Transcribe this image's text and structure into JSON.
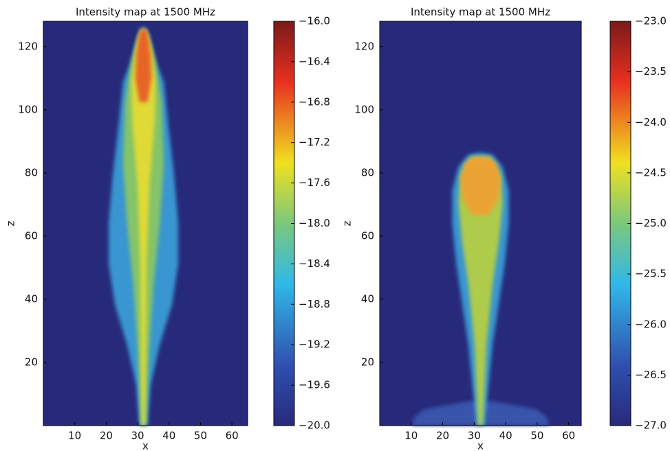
{
  "chart_data": [
    {
      "type": "heatmap",
      "title": "Intensity map at 1500 MHz",
      "xlabel": "x",
      "ylabel": "z",
      "xlim": [
        0,
        65
      ],
      "ylim": [
        0,
        128
      ],
      "xticks": [
        10,
        20,
        30,
        40,
        50,
        60
      ],
      "yticks": [
        20,
        40,
        60,
        80,
        100,
        120
      ],
      "colorbar": {
        "lim": [
          -20.0,
          -16.0
        ],
        "ticks": [
          {
            "value": -16.0,
            "label": "−16.0"
          },
          {
            "value": -16.4,
            "label": "−16.4"
          },
          {
            "value": -16.8,
            "label": "−16.8"
          },
          {
            "value": -17.2,
            "label": "−17.2"
          },
          {
            "value": -17.6,
            "label": "−17.6"
          },
          {
            "value": -18.0,
            "label": "−18.0"
          },
          {
            "value": -18.4,
            "label": "−18.4"
          },
          {
            "value": -18.8,
            "label": "−18.8"
          },
          {
            "value": -19.2,
            "label": "−19.2"
          },
          {
            "value": -19.6,
            "label": "−19.6"
          },
          {
            "value": -20.0,
            "label": "−20.0"
          }
        ]
      }
    },
    {
      "type": "heatmap",
      "title": "Intensity map at 1500 MHz",
      "xlabel": "x",
      "ylabel": "z",
      "xlim": [
        0,
        64
      ],
      "ylim": [
        0,
        128
      ],
      "xticks": [
        10,
        20,
        30,
        40,
        50,
        60
      ],
      "yticks": [
        20,
        40,
        60,
        80,
        100,
        120
      ],
      "colorbar": {
        "lim": [
          -27.0,
          -23.0
        ],
        "ticks": [
          {
            "value": -23.0,
            "label": "−23.0"
          },
          {
            "value": -23.5,
            "label": "−23.5"
          },
          {
            "value": -24.0,
            "label": "−24.0"
          },
          {
            "value": -24.5,
            "label": "−24.5"
          },
          {
            "value": -25.0,
            "label": "−25.0"
          },
          {
            "value": -25.5,
            "label": "−25.5"
          },
          {
            "value": -26.0,
            "label": "−26.0"
          },
          {
            "value": -26.5,
            "label": "−26.5"
          },
          {
            "value": -27.0,
            "label": "−27.0"
          }
        ]
      }
    }
  ]
}
